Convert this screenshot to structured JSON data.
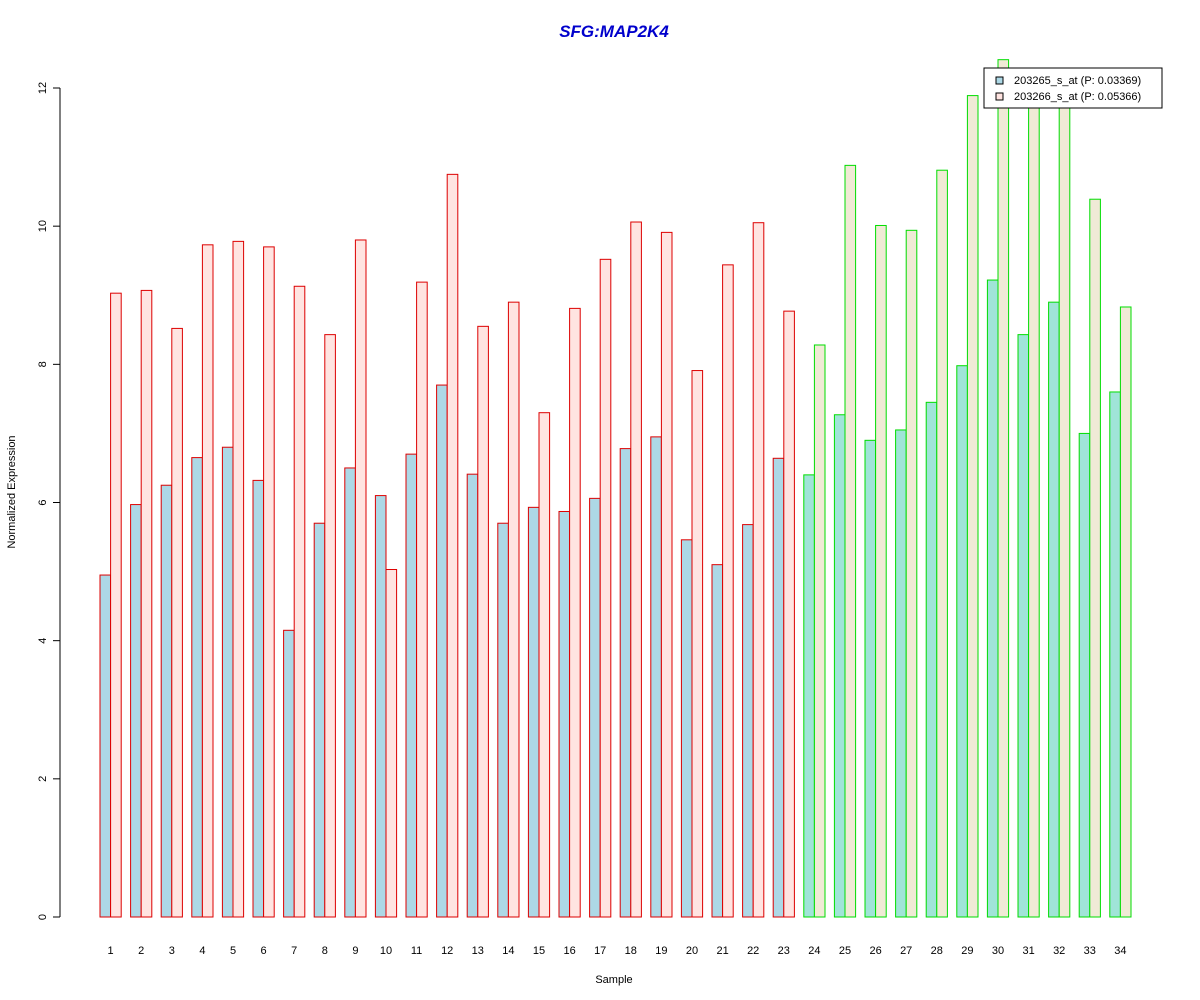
{
  "chart_data": {
    "type": "bar",
    "title": "SFG:MAP2K4",
    "xlabel": "Sample",
    "ylabel": "Normalized Expression",
    "ylim": [
      0,
      12
    ],
    "yticks": [
      0,
      2,
      4,
      6,
      8,
      10,
      12
    ],
    "grid": false,
    "legend_position": "top-right",
    "categories": [
      "1",
      "2",
      "3",
      "4",
      "5",
      "6",
      "7",
      "8",
      "9",
      "10",
      "11",
      "12",
      "13",
      "14",
      "15",
      "16",
      "17",
      "18",
      "19",
      "20",
      "21",
      "22",
      "23",
      "24",
      "25",
      "26",
      "27",
      "28",
      "29",
      "30",
      "31",
      "32",
      "33",
      "34"
    ],
    "group_split_after": 23,
    "series": [
      {
        "name": "203265_s_at (P: 0.03369)",
        "values": [
          4.95,
          5.97,
          6.25,
          6.65,
          6.8,
          6.32,
          4.15,
          5.7,
          6.5,
          6.1,
          6.7,
          7.7,
          6.41,
          5.7,
          5.93,
          5.87,
          6.06,
          6.78,
          6.95,
          5.46,
          5.1,
          5.68,
          6.64,
          6.4,
          7.27,
          6.9,
          7.05,
          7.45,
          7.98,
          9.22,
          8.43,
          8.9,
          7.0,
          7.6
        ]
      },
      {
        "name": "203266_s_at (P: 0.05366)",
        "values": [
          9.03,
          9.07,
          8.52,
          9.73,
          9.78,
          9.7,
          9.13,
          8.43,
          9.8,
          5.03,
          9.19,
          10.75,
          8.55,
          8.9,
          7.3,
          8.81,
          9.52,
          10.06,
          9.91,
          7.91,
          9.44,
          10.05,
          8.77,
          8.28,
          10.88,
          10.01,
          9.94,
          10.81,
          11.89,
          12.41,
          11.77,
          11.9,
          10.39,
          8.83
        ]
      }
    ],
    "colors": {
      "title": "#0000cc",
      "series1_fill_group1": "#add8e6",
      "series2_fill_group1": "#ffe4e1",
      "group1_border": "#dd0000",
      "series1_fill_group2": "#a0e4d8",
      "series2_fill_group2": "#f0ead6",
      "group2_border": "#00dd00",
      "legend_swatch1": "#add8e6",
      "legend_swatch2": "#ffe4e1"
    }
  }
}
